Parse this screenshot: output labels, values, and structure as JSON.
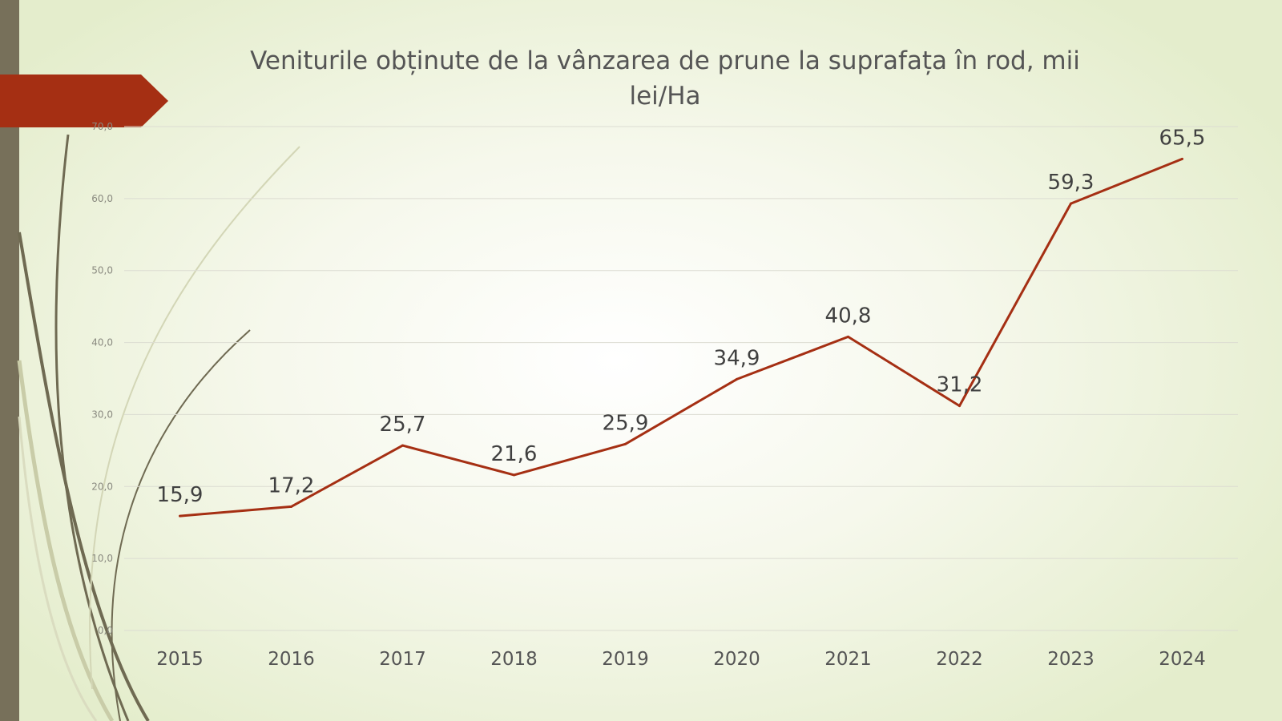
{
  "slide": {
    "accent_color": "#a52f13",
    "bar_color": "#77705a",
    "decor_line_color": "#6f6a52"
  },
  "chart_data": {
    "type": "line",
    "title": "Veniturile obținute de la vânzarea de prune la suprafața în rod, mii lei/Ha",
    "categories": [
      "2015",
      "2016",
      "2017",
      "2018",
      "2019",
      "2020",
      "2021",
      "2022",
      "2023",
      "2024"
    ],
    "series": [
      {
        "values": [
          15.9,
          17.2,
          25.7,
          21.6,
          25.9,
          34.9,
          40.8,
          31.2,
          59.3,
          65.5
        ],
        "data_labels": [
          "15,9",
          "17,2",
          "25,7",
          "21,6",
          "25,9",
          "34,9",
          "40,8",
          "31,2",
          "59,3",
          "65,5"
        ],
        "color": "#a52f13"
      }
    ],
    "yticks": [
      "0,0",
      "10,0",
      "20,0",
      "30,0",
      "40,0",
      "50,0",
      "60,0",
      "70,0"
    ],
    "ylim": [
      0,
      70
    ],
    "grid": true,
    "legend": "none"
  }
}
